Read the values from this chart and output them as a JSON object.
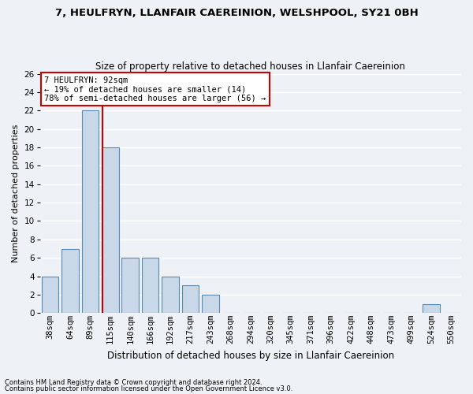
{
  "title1": "7, HEULFRYN, LLANFAIR CAEREINION, WELSHPOOL, SY21 0BH",
  "title2": "Size of property relative to detached houses in Llanfair Caereinion",
  "xlabel": "Distribution of detached houses by size in Llanfair Caereinion",
  "ylabel": "Number of detached properties",
  "footnote1": "Contains HM Land Registry data © Crown copyright and database right 2024.",
  "footnote2": "Contains public sector information licensed under the Open Government Licence v3.0.",
  "annotation_line1": "7 HEULFRYN: 92sqm",
  "annotation_line2": "← 19% of detached houses are smaller (14)",
  "annotation_line3": "78% of semi-detached houses are larger (56) →",
  "bar_labels": [
    "38sqm",
    "64sqm",
    "89sqm",
    "115sqm",
    "140sqm",
    "166sqm",
    "192sqm",
    "217sqm",
    "243sqm",
    "268sqm",
    "294sqm",
    "320sqm",
    "345sqm",
    "371sqm",
    "396sqm",
    "422sqm",
    "448sqm",
    "473sqm",
    "499sqm",
    "524sqm",
    "550sqm"
  ],
  "bar_values": [
    4,
    7,
    22,
    18,
    6,
    6,
    4,
    3,
    2,
    0,
    0,
    0,
    0,
    0,
    0,
    0,
    0,
    0,
    0,
    1,
    0
  ],
  "bar_color": "#c8d8e8",
  "bar_edge_color": "#5a8ab0",
  "red_line_x": 2.62,
  "ylim": [
    0,
    26
  ],
  "yticks": [
    0,
    2,
    4,
    6,
    8,
    10,
    12,
    14,
    16,
    18,
    20,
    22,
    24,
    26
  ],
  "bg_color": "#eef2f7",
  "grid_color": "#ffffff",
  "annotation_box_color": "#ffffff",
  "annotation_box_edge": "#cc0000",
  "red_line_color": "#cc0000",
  "title1_fontsize": 9.5,
  "title2_fontsize": 8.5,
  "ylabel_fontsize": 8.0,
  "xlabel_fontsize": 8.5,
  "tick_fontsize": 7.5,
  "annot_fontsize": 7.5,
  "footnote_fontsize": 6.0
}
